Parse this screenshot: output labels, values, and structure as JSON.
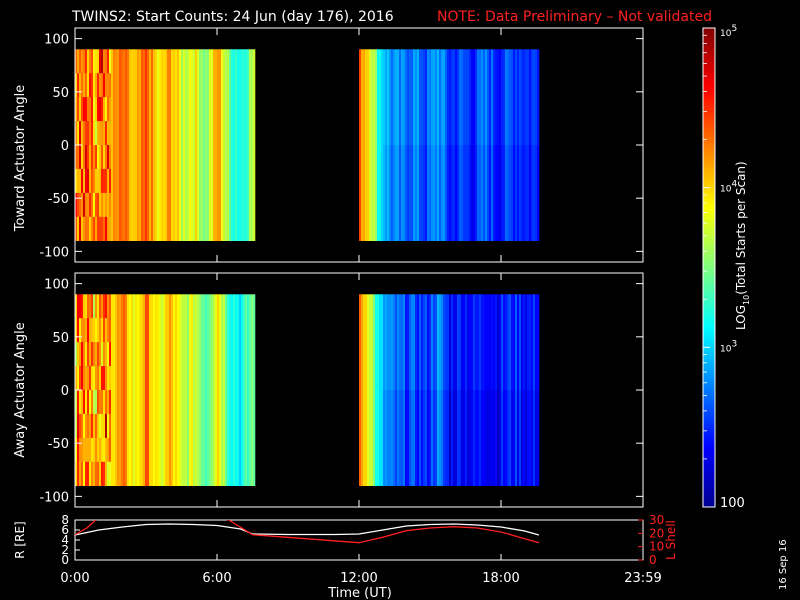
{
  "title": {
    "main": "TWINS2: Start Counts: 24 Jun (day 176), 2016",
    "note": "NOTE: Data Preliminary – Not validated",
    "note_color": "#ff2020"
  },
  "date_stamp": "16 Sep 16",
  "chart_data": [
    {
      "type": "heatmap",
      "name": "toward",
      "ylabel": "Toward Actuator Angle",
      "ylim": [
        -110,
        110
      ],
      "yticks": [
        -100,
        -50,
        0,
        50,
        100
      ],
      "xlim_hours": [
        0,
        24
      ],
      "data_y_range": [
        -90,
        90
      ],
      "data_gaps_hours": [
        [
          7.6,
          12.0
        ],
        [
          19.6,
          24.0
        ]
      ],
      "profile_hours": [
        0.0,
        0.4,
        0.8,
        1.2,
        1.6,
        2.0,
        2.5,
        3.0,
        3.5,
        4.0,
        4.5,
        5.0,
        5.5,
        6.0,
        6.5,
        7.0,
        7.6,
        12.0,
        12.4,
        12.8,
        13.3,
        13.8,
        14.3,
        14.8,
        15.3,
        15.8,
        16.3,
        16.8,
        17.3,
        17.8,
        18.3,
        18.8,
        19.2,
        19.6
      ],
      "profile_log10": [
        4.3,
        4.4,
        4.2,
        4.5,
        4.1,
        4.3,
        3.9,
        4.4,
        3.8,
        4.2,
        3.7,
        3.9,
        3.5,
        4.2,
        3.4,
        3.2,
        3.8,
        4.3,
        4.0,
        3.2,
        2.8,
        2.7,
        2.8,
        2.6,
        2.9,
        2.5,
        2.6,
        2.5,
        2.7,
        2.5,
        2.6,
        2.6,
        2.5,
        2.6
      ]
    },
    {
      "type": "heatmap",
      "name": "away",
      "ylabel": "Away Actuator Angle",
      "ylim": [
        -110,
        110
      ],
      "yticks": [
        -100,
        -50,
        0,
        50,
        100
      ],
      "xlim_hours": [
        0,
        24
      ],
      "data_y_range": [
        -90,
        90
      ],
      "data_gaps_hours": [
        [
          7.6,
          12.0
        ],
        [
          19.6,
          24.0
        ]
      ],
      "profile_hours": [
        0.0,
        0.4,
        0.8,
        1.2,
        1.6,
        2.0,
        2.5,
        3.0,
        3.5,
        4.0,
        4.5,
        5.0,
        5.5,
        6.0,
        6.5,
        7.0,
        7.6,
        12.0,
        12.4,
        12.8,
        13.3,
        13.8,
        14.3,
        14.8,
        15.3,
        15.8,
        16.3,
        16.8,
        17.3,
        17.8,
        18.3,
        18.8,
        19.2,
        19.6
      ],
      "profile_log10": [
        4.2,
        4.4,
        4.1,
        4.4,
        4.0,
        4.2,
        3.8,
        4.3,
        3.7,
        4.1,
        3.6,
        3.8,
        3.4,
        4.0,
        3.3,
        3.1,
        3.6,
        4.2,
        3.9,
        3.0,
        2.7,
        2.6,
        2.6,
        2.5,
        2.8,
        2.4,
        2.5,
        2.4,
        2.5,
        2.4,
        2.5,
        2.5,
        2.4,
        2.5
      ]
    },
    {
      "type": "line",
      "name": "orbit",
      "xlabel": "Time (UT)",
      "xticks": [
        "0:00",
        "6:00",
        "12:00",
        "18:00",
        "23:59"
      ],
      "xtick_hours": [
        0,
        6,
        12,
        18,
        24
      ],
      "left_axis": {
        "label": "R [RE]",
        "ylim": [
          0,
          8
        ],
        "yticks": [
          0,
          2,
          4,
          6,
          8
        ],
        "color": "#ffffff"
      },
      "right_axis": {
        "label": "L Shell",
        "ylim": [
          0,
          30
        ],
        "yticks": [
          0,
          10,
          20,
          30
        ],
        "color": "#ff2020"
      },
      "series": [
        {
          "axis": "left",
          "color": "#ffffff",
          "x": [
            0.0,
            1.0,
            2.0,
            3.0,
            4.0,
            5.0,
            6.0,
            7.0,
            7.5,
            9.0,
            11.0,
            12.0,
            13.0,
            14.0,
            15.0,
            16.0,
            17.0,
            18.0,
            19.0,
            19.6
          ],
          "y": [
            5.0,
            6.0,
            6.6,
            7.1,
            7.2,
            7.1,
            6.9,
            6.2,
            5.2,
            5.1,
            5.1,
            5.2,
            6.0,
            6.8,
            7.1,
            7.2,
            7.0,
            6.6,
            5.8,
            5.0
          ]
        },
        {
          "axis": "right",
          "color": "#ff2020",
          "x": [
            0.0,
            0.5,
            1.0,
            6.0,
            6.5,
            7.5,
            12.0,
            13.0,
            14.0,
            15.0,
            16.0,
            17.0,
            18.0,
            19.0,
            19.6
          ],
          "y": [
            19.0,
            24.0,
            32.0,
            32.0,
            30.0,
            19.0,
            13.0,
            17.0,
            22.0,
            24.0,
            25.0,
            24.0,
            21.0,
            16.0,
            13.0
          ]
        }
      ]
    }
  ],
  "colorbar": {
    "label": "LOG10(Total Starts per Scan)",
    "label_main": "LOG",
    "label_sub": "10",
    "label_rest": "(Total Starts per Scan)",
    "log_range": [
      2,
      5
    ],
    "ticks": [
      {
        "log": 5,
        "base": "10",
        "exp": "5"
      },
      {
        "log": 4,
        "base": "10",
        "exp": "4"
      },
      {
        "log": 3,
        "base": "10",
        "exp": "3"
      },
      {
        "log": 2,
        "text": "100"
      }
    ]
  }
}
